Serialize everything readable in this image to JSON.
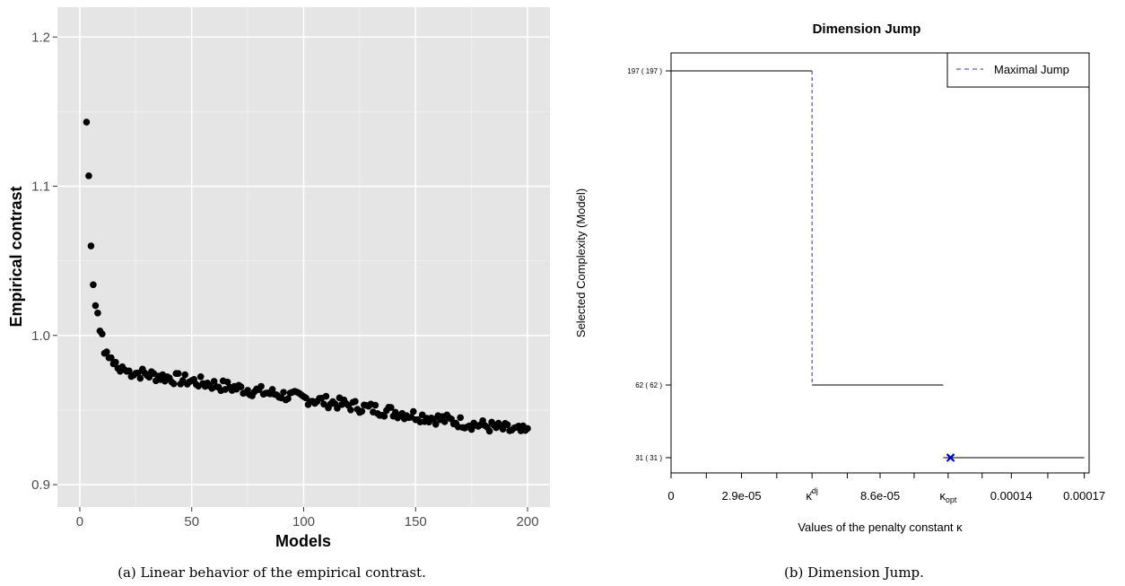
{
  "chart_data": [
    {
      "type": "scatter",
      "panel": "a",
      "xlabel": "Models",
      "ylabel": "Empirical contrast",
      "xlim": [
        -10,
        210
      ],
      "ylim": [
        0.885,
        1.22
      ],
      "x_ticks": [
        0,
        50,
        100,
        150,
        200
      ],
      "y_ticks": [
        0.9,
        1.0,
        1.1,
        1.2
      ],
      "x_tick_labels": [
        "0",
        "50",
        "100",
        "150",
        "200"
      ],
      "y_tick_labels": [
        "0.9",
        "1.0",
        "1.1",
        "1.2"
      ],
      "grid": true,
      "background": "#e5e5e5",
      "point_color": "#000000",
      "head_points": [
        [
          3,
          1.143
        ],
        [
          4,
          1.107
        ],
        [
          5,
          1.06
        ],
        [
          6,
          1.034
        ],
        [
          7,
          1.02
        ],
        [
          8,
          1.015
        ],
        [
          9,
          1.003
        ],
        [
          10,
          1.001
        ],
        [
          11,
          0.988
        ],
        [
          12,
          0.989
        ],
        [
          13,
          0.985
        ],
        [
          14,
          0.985
        ],
        [
          15,
          0.981
        ],
        [
          16,
          0.982
        ],
        [
          17,
          0.978
        ],
        [
          18,
          0.976
        ],
        [
          19,
          0.979
        ],
        [
          20,
          0.977
        ]
      ],
      "tail_model": {
        "x_range": [
          21,
          200
        ],
        "y_start": 0.976,
        "y_end": 0.935,
        "scatter": 0.004
      },
      "caption": "(a) Linear behavior of the empirical contrast."
    },
    {
      "type": "line",
      "panel": "b",
      "title": "Dimension Jump",
      "xlabel": "Values of the penalty constant κ",
      "ylabel": "Selected Complexity (Model)",
      "xlim": [
        0,
        0.000172
      ],
      "x_tick_values": [
        0,
        1.45e-05,
        2.9e-05,
        4.35e-05,
        5.8e-05,
        7.25e-05,
        8.6e-05,
        0.0001,
        0.000114,
        0.000128,
        0.00014,
        0.000155,
        0.00017
      ],
      "x_tick_labels": [
        {
          "value": 0,
          "text": "0"
        },
        {
          "value": 2.9e-05,
          "text": "2.9e-05"
        },
        {
          "value": 5.8e-05,
          "text": "κ̂",
          "sup": "dj"
        },
        {
          "value": 8.6e-05,
          "text": "8.6e-05"
        },
        {
          "value": 0.000114,
          "text": "κ",
          "sub": "opt"
        },
        {
          "value": 0.00014,
          "text": "0.00014"
        },
        {
          "value": 0.00017,
          "text": "0.00017"
        }
      ],
      "y_levels": [
        {
          "model": 197,
          "label": "197 ( 197 )"
        },
        {
          "model": 62,
          "label": "62 ( 62 )"
        },
        {
          "model": 31,
          "label": "31 ( 31 )"
        }
      ],
      "steps": [
        {
          "x0": 0,
          "x1": 5.8e-05,
          "model": 197
        },
        {
          "x0": 5.8e-05,
          "x1": 0.000112,
          "model": 62
        },
        {
          "x0": 0.000112,
          "x1": 0.00017,
          "model": 31
        }
      ],
      "maximal_jump": {
        "x": 5.8e-05,
        "from": 197,
        "to": 62,
        "color": "#3333aa"
      },
      "optimum_marker": {
        "x": 0.000115,
        "model": 31,
        "color": "#0000cc"
      },
      "legend": {
        "label": "Maximal Jump",
        "placement": "top-right"
      },
      "caption": "(b) Dimension Jump."
    }
  ]
}
